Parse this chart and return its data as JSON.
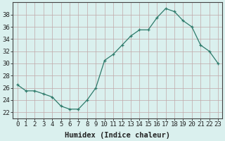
{
  "x": [
    0,
    1,
    2,
    3,
    4,
    5,
    6,
    7,
    8,
    9,
    10,
    11,
    12,
    13,
    14,
    15,
    16,
    17,
    18,
    19,
    20,
    21,
    22,
    23
  ],
  "y": [
    26.5,
    25.5,
    25.5,
    25.0,
    24.5,
    23.0,
    22.5,
    22.5,
    24.0,
    26.0,
    30.5,
    31.5,
    33.0,
    34.5,
    35.5,
    35.5,
    37.5,
    39.0,
    38.5,
    37.0,
    36.0,
    33.0,
    32.0,
    30.0
  ],
  "line_color": "#2d7a6a",
  "marker": "+",
  "marker_color": "#2d7a6a",
  "bg_color": "#daf0ee",
  "grid_color": "#c0a8a8",
  "xlabel": "Humidex (Indice chaleur)",
  "ylim": [
    21,
    40
  ],
  "xlim": [
    -0.5,
    23.5
  ],
  "yticks": [
    22,
    24,
    26,
    28,
    30,
    32,
    34,
    36,
    38
  ],
  "xticks": [
    0,
    1,
    2,
    3,
    4,
    5,
    6,
    7,
    8,
    9,
    10,
    11,
    12,
    13,
    14,
    15,
    16,
    17,
    18,
    19,
    20,
    21,
    22,
    23
  ],
  "tick_label_fontsize": 6.5,
  "xlabel_fontsize": 7.5,
  "label_color": "#222222",
  "spine_color": "#444444"
}
